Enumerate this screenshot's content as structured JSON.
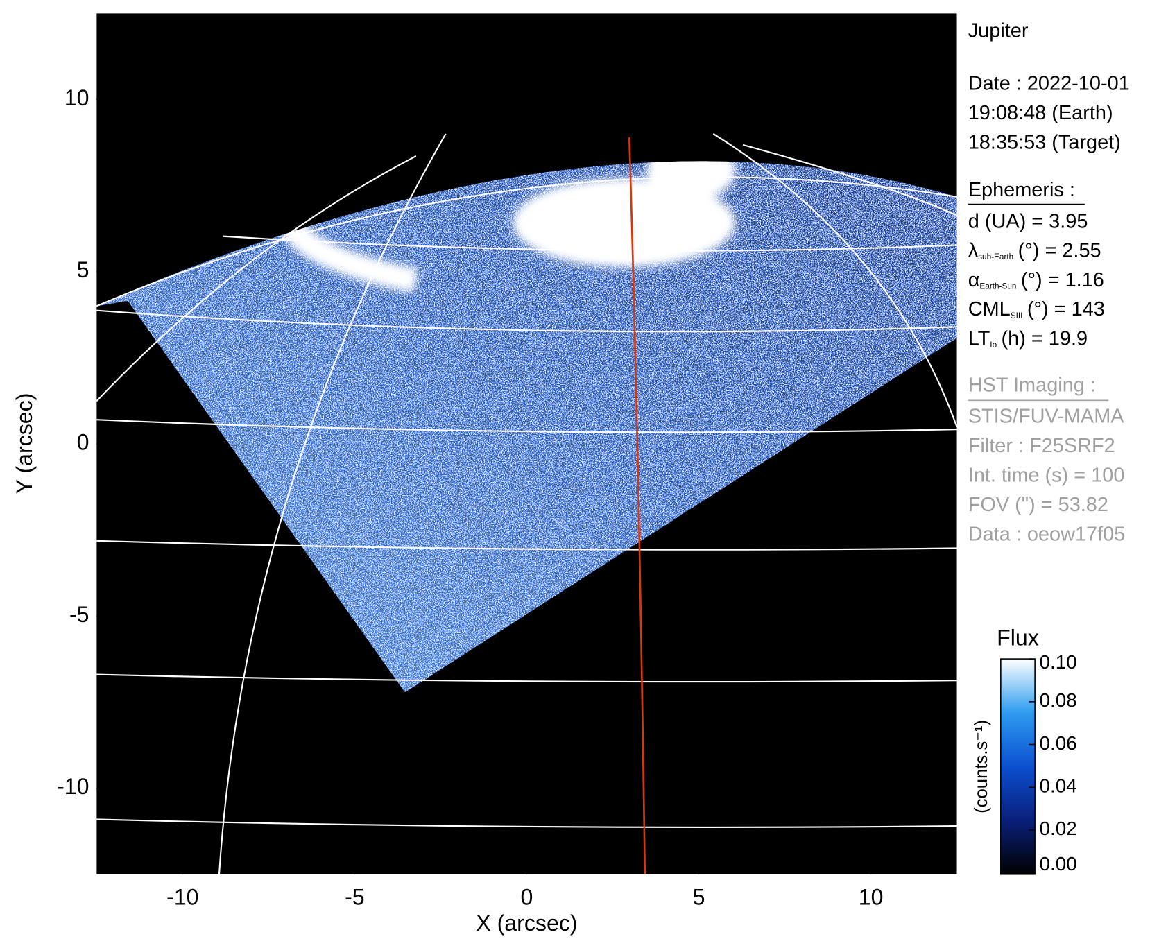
{
  "chart_data": {
    "type": "image",
    "xlabel": "X (arcsec)",
    "ylabel": "Y (arcsec)",
    "xlim": [
      -12.5,
      12.5
    ],
    "ylim": [
      -12.5,
      12.5
    ],
    "xticks": [
      -10,
      -5,
      0,
      5,
      10
    ],
    "yticks": [
      -10,
      -5,
      0,
      5,
      10
    ],
    "colorbar": {
      "label": "Flux",
      "units": "(counts.s⁻¹)",
      "clim": [
        0,
        0.1
      ],
      "ticks": [
        {
          "value": 0,
          "label": "0.00"
        },
        0.02,
        0.04,
        0.06,
        0.08,
        {
          "value": 0.1,
          "label": "0.10"
        }
      ]
    }
  },
  "info": {
    "title": "Jupiter",
    "date": [
      "Date : 2022-10-01",
      "19:08:48 (Earth)",
      "18:35:53 (Target)"
    ],
    "ephemeris": {
      "heading": "Ephemeris :",
      "items": [
        {
          "text": "d (UA)    = 3.95"
        },
        {
          "symbol": "λ",
          "sub": "sub-Earth",
          "text": "(°) = 2.55"
        },
        {
          "symbol": "α",
          "sub": "Earth-Sun",
          "text": "(°) = 1.16"
        },
        {
          "symbol": "CML",
          "sub": "SIII",
          "text": "(°) = 143"
        },
        {
          "symbol": "LT",
          "sub": "Io",
          "text": "(h) = 19.9"
        }
      ]
    },
    "hst": {
      "heading": "HST Imaging :",
      "lines": [
        "STIS/FUV-MAMA",
        "Filter : F25SRF2",
        "Int. time (s) = 100",
        "FOV (\") = 53.82",
        "Data : oeow17f05"
      ]
    }
  }
}
